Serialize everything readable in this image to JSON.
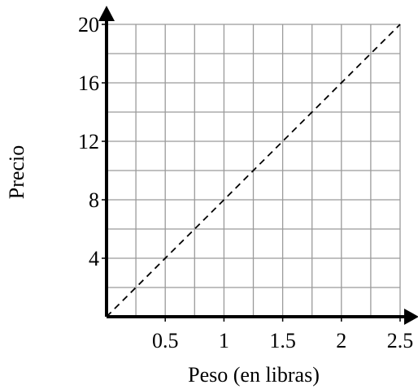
{
  "chart_data": {
    "type": "line",
    "title": "",
    "xlabel": "Peso (en libras)",
    "ylabel": "Precio",
    "xlim": [
      0,
      2.5
    ],
    "ylim": [
      0,
      20
    ],
    "x_ticks": [
      0.5,
      1,
      1.5,
      2,
      2.5
    ],
    "x_tick_labels": [
      "0.5",
      "1",
      "1.5",
      "2",
      "2.5"
    ],
    "y_ticks": [
      4,
      8,
      12,
      16,
      20
    ],
    "y_tick_labels": [
      "4",
      "8",
      "12",
      "16",
      "20"
    ],
    "x_grid_step": 0.25,
    "y_grid_step": 2,
    "grid": true,
    "series": [
      {
        "style": "dashed",
        "color": "#000000",
        "x": [
          0,
          2.5
        ],
        "y": [
          0,
          20
        ]
      }
    ]
  }
}
